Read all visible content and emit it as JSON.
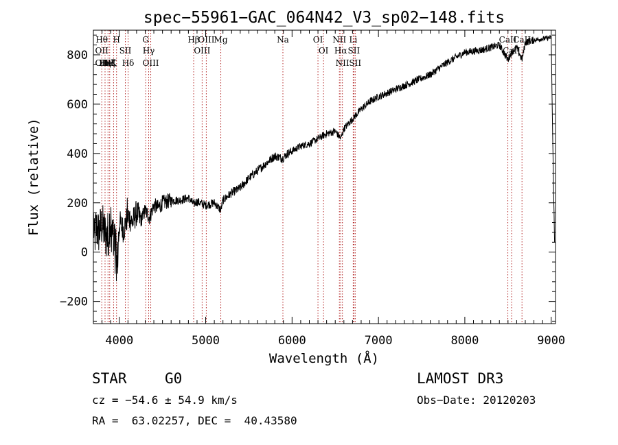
{
  "chart_data": {
    "type": "line",
    "title": "spec−55961−GAC_064N42_V3_sp02−148.fits",
    "xlabel": "Wavelength (Å)",
    "ylabel": "Flux (relative)",
    "xlim": [
      3700,
      9050
    ],
    "ylim": [
      -290,
      900
    ],
    "x_ticks": [
      4000,
      5000,
      6000,
      7000,
      8000,
      9000
    ],
    "x_tick_labels": [
      "4000",
      "5000",
      "6000",
      "7000",
      "8000",
      "9000"
    ],
    "y_ticks": [
      -200,
      0,
      200,
      400,
      600,
      800
    ],
    "y_tick_labels": [
      "−200",
      "0",
      "200",
      "400",
      "600",
      "800"
    ],
    "grid": false,
    "series": [
      {
        "name": "flux",
        "color": "#000000",
        "anchors_x": [
          3700,
          3710,
          3730,
          3760,
          3800,
          3850,
          3900,
          3950,
          3975,
          4000,
          4050,
          4100,
          4150,
          4200,
          4250,
          4300,
          4350,
          4400,
          4450,
          4500,
          4600,
          4700,
          4800,
          4860,
          4900,
          5000,
          5100,
          5175,
          5200,
          5300,
          5400,
          5500,
          5600,
          5700,
          5800,
          5890,
          5950,
          6000,
          6100,
          6200,
          6300,
          6400,
          6500,
          6563,
          6600,
          6700,
          6800,
          6900,
          7000,
          7200,
          7400,
          7600,
          7800,
          8000,
          8200,
          8400,
          8498,
          8542,
          8600,
          8662,
          8700,
          8800,
          8900,
          9000,
          9020,
          9040
        ],
        "anchors_y": [
          150,
          40,
          100,
          80,
          110,
          60,
          100,
          40,
          -60,
          120,
          90,
          150,
          120,
          160,
          130,
          170,
          140,
          190,
          180,
          200,
          210,
          210,
          220,
          195,
          205,
          190,
          200,
          170,
          210,
          240,
          260,
          300,
          330,
          360,
          390,
          380,
          400,
          410,
          430,
          440,
          460,
          480,
          490,
          460,
          500,
          540,
          580,
          610,
          630,
          660,
          690,
          720,
          770,
          810,
          820,
          840,
          780,
          810,
          830,
          780,
          850,
          860,
          865,
          870,
          400,
          20
        ],
        "noise_amplitude": "large at blue end (<4600 Å), small elsewhere"
      }
    ],
    "line_markers": [
      {
        "wl": 3797,
        "labels": [
          "Hθ",
          "OII",
          "OII"
        ]
      },
      {
        "wl": 3835,
        "labels": [
          "Hη"
        ]
      },
      {
        "wl": 3869,
        "labels": [
          "HeI"
        ]
      },
      {
        "wl": 3889,
        "labels": [
          "Hζ"
        ]
      },
      {
        "wl": 3934,
        "labels": [
          "K"
        ]
      },
      {
        "wl": 3968,
        "labels": [
          "H"
        ]
      },
      {
        "wl": 4070,
        "labels": [
          "SII"
        ]
      },
      {
        "wl": 4102,
        "labels": [
          "Hδ"
        ]
      },
      {
        "wl": 4305,
        "labels": [
          "G"
        ]
      },
      {
        "wl": 4340,
        "labels": [
          "Hγ"
        ]
      },
      {
        "wl": 4364,
        "labels": [
          "OIII"
        ]
      },
      {
        "wl": 4861,
        "labels": [
          "Hβ"
        ]
      },
      {
        "wl": 4959,
        "labels": [
          "OIII"
        ]
      },
      {
        "wl": 5007,
        "labels": [
          "OIII"
        ]
      },
      {
        "wl": 5175,
        "labels": [
          "Mg"
        ]
      },
      {
        "wl": 5894,
        "labels": [
          "Na"
        ]
      },
      {
        "wl": 6300,
        "labels": [
          "OI"
        ]
      },
      {
        "wl": 6364,
        "labels": [
          "OI"
        ]
      },
      {
        "wl": 6548,
        "labels": [
          "NII"
        ]
      },
      {
        "wl": 6563,
        "labels": [
          "Hα"
        ]
      },
      {
        "wl": 6583,
        "labels": [
          "NII"
        ]
      },
      {
        "wl": 6708,
        "labels": [
          "Li"
        ]
      },
      {
        "wl": 6716,
        "labels": [
          "SII"
        ]
      },
      {
        "wl": 6731,
        "labels": [
          "SII"
        ]
      },
      {
        "wl": 8498,
        "labels": [
          "CaII"
        ]
      },
      {
        "wl": 8542,
        "labels": [
          "CaII"
        ]
      },
      {
        "wl": 8662,
        "labels": [
          "CaII"
        ]
      }
    ],
    "marker_color": "#b22222"
  },
  "info": {
    "class": "STAR",
    "subclass": "G0",
    "survey": "LAMOST DR3",
    "redshift": "cz = −54.6 ± 54.9 km/s",
    "obs_date": "Obs−Date: 20120203",
    "coords": "RA =  63.02257, DEC =  40.43580"
  }
}
